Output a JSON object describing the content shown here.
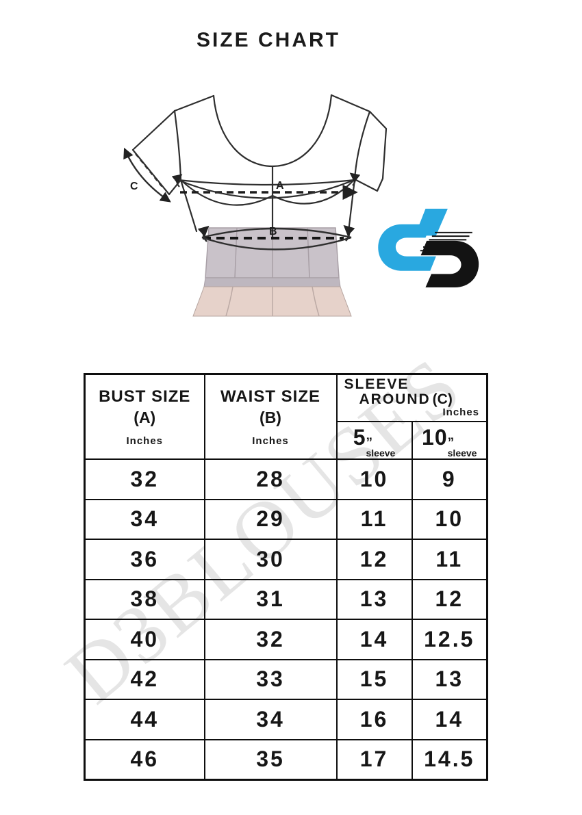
{
  "page": {
    "title": "SIZE CHART"
  },
  "watermark": "D3BLOUSES",
  "diagram": {
    "labels": {
      "bust_point": "A",
      "waist_point": "B",
      "sleeve_length": "C"
    },
    "logo": {
      "monogram": "d3",
      "primary_color": "#29A8E0",
      "secondary_color": "#131313"
    }
  },
  "table": {
    "header": {
      "col1": {
        "title": "BUST SIZE",
        "code": "(A)",
        "unit": "Inches"
      },
      "col2": {
        "title": "WAIST SIZE",
        "code": "(B)",
        "unit": "Inches"
      },
      "col3": {
        "line1": "SLEEVE",
        "line2": "AROUND",
        "code": "(C)",
        "unit": "Inches",
        "sub": [
          {
            "value": "5",
            "mark": "”",
            "label": "sleeve"
          },
          {
            "value": "10",
            "mark": "”",
            "label": "sleeve"
          }
        ]
      }
    }
  },
  "chart_data": {
    "type": "table",
    "title": "SIZE CHART",
    "columns": [
      "BUST SIZE (A) Inches",
      "WAIST SIZE (B) Inches",
      "SLEEVE AROUND (C) Inches — 5\" sleeve",
      "SLEEVE AROUND (C) Inches — 10\" sleeve"
    ],
    "rows": [
      [
        "32",
        "28",
        "10",
        "9"
      ],
      [
        "34",
        "29",
        "11",
        "10"
      ],
      [
        "36",
        "30",
        "12",
        "11"
      ],
      [
        "38",
        "31",
        "13",
        "12"
      ],
      [
        "40",
        "32",
        "14",
        "12.5"
      ],
      [
        "42",
        "33",
        "15",
        "13"
      ],
      [
        "44",
        "34",
        "16",
        "14"
      ],
      [
        "46",
        "35",
        "17",
        "14.5"
      ]
    ]
  }
}
